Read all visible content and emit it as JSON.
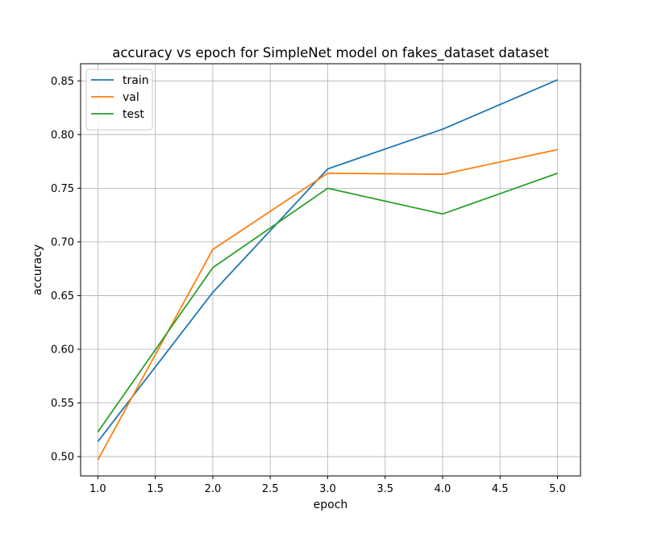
{
  "chart_data": {
    "type": "line",
    "title": "accuracy vs epoch for SimpleNet model on fakes_dataset dataset",
    "xlabel": "epoch",
    "ylabel": "accuracy",
    "x": [
      1,
      2,
      3,
      4,
      5
    ],
    "xlim": [
      0.85,
      5.2
    ],
    "ylim": [
      0.482,
      0.866
    ],
    "xticks": [
      1.0,
      1.5,
      2.0,
      2.5,
      3.0,
      3.5,
      4.0,
      4.5,
      5.0
    ],
    "xtick_labels": [
      "1.0",
      "1.5",
      "2.0",
      "2.5",
      "3.0",
      "3.5",
      "4.0",
      "4.5",
      "5.0"
    ],
    "yticks": [
      0.5,
      0.55,
      0.6,
      0.65,
      0.7,
      0.75,
      0.8,
      0.85
    ],
    "ytick_labels": [
      "0.50",
      "0.55",
      "0.60",
      "0.65",
      "0.70",
      "0.75",
      "0.80",
      "0.85"
    ],
    "grid": true,
    "legend_position": "top-left",
    "series": [
      {
        "name": "train",
        "color": "#1f77b4",
        "values": [
          0.514,
          0.653,
          0.768,
          0.805,
          0.851
        ]
      },
      {
        "name": "val",
        "color": "#ff7f0e",
        "values": [
          0.497,
          0.693,
          0.764,
          0.763,
          0.786
        ]
      },
      {
        "name": "test",
        "color": "#2ca02c",
        "values": [
          0.523,
          0.676,
          0.75,
          0.726,
          0.764
        ]
      }
    ]
  }
}
